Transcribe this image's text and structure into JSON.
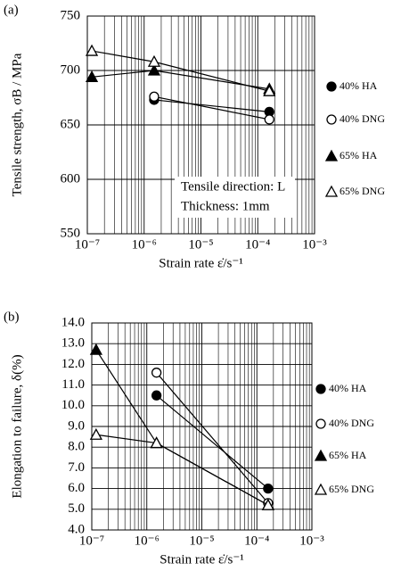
{
  "chart_data": [
    {
      "type": "line",
      "panel_label": "(a)",
      "y_label": "Tensile strength, σB / MPa",
      "x_label": "Strain rate  ε̇/s⁻¹",
      "log_x": true,
      "grid": true,
      "xlim": [
        1e-07,
        0.001
      ],
      "xticks": [
        {
          "value": 1e-07,
          "label": "10⁻⁷"
        },
        {
          "value": 1e-06,
          "label": "10⁻⁶"
        },
        {
          "value": 1e-05,
          "label": "10⁻⁵"
        },
        {
          "value": 0.0001,
          "label": "10⁻⁴"
        },
        {
          "value": 0.001,
          "label": "10⁻³"
        }
      ],
      "ylim": [
        550,
        750
      ],
      "yticks": [
        550,
        600,
        650,
        700,
        750
      ],
      "annotations": [
        "Tensile direction: L",
        "Thickness: 1mm"
      ],
      "series": [
        {
          "name": "40% HA",
          "color": "#000000",
          "marker": "circle",
          "filled": true,
          "x": [
            1.5e-06,
            0.00016
          ],
          "values": [
            673,
            662
          ]
        },
        {
          "name": "40% DNG",
          "color": "#000000",
          "marker": "circle",
          "filled": false,
          "x": [
            1.5e-06,
            0.00016
          ],
          "values": [
            676,
            655
          ]
        },
        {
          "name": "65% HA",
          "color": "#000000",
          "marker": "triangle",
          "filled": true,
          "x": [
            1.2e-07,
            1.5e-06,
            0.00016
          ],
          "values": [
            694,
            700,
            683
          ]
        },
        {
          "name": "65% DNG",
          "color": "#000000",
          "marker": "triangle",
          "filled": false,
          "x": [
            1.2e-07,
            1.5e-06,
            0.00016
          ],
          "values": [
            718,
            708,
            681
          ]
        }
      ]
    },
    {
      "type": "line",
      "panel_label": "(b)",
      "y_label": "Elongation to failure, δ(%)",
      "x_label": "Strain rate  ε̇/s⁻¹",
      "log_x": true,
      "grid": true,
      "xlim": [
        1e-07,
        0.001
      ],
      "xticks": [
        {
          "value": 1e-07,
          "label": "10⁻⁷"
        },
        {
          "value": 1e-06,
          "label": "10⁻⁶"
        },
        {
          "value": 1e-05,
          "label": "10⁻⁵"
        },
        {
          "value": 0.0001,
          "label": "10⁻⁴"
        },
        {
          "value": 0.001,
          "label": "10⁻³"
        }
      ],
      "ylim": [
        4,
        14
      ],
      "yticks": [
        {
          "value": 4,
          "label": "4.0"
        },
        {
          "value": 5,
          "label": "5.0"
        },
        {
          "value": 6,
          "label": "6.0"
        },
        {
          "value": 7,
          "label": "7.0"
        },
        {
          "value": 8,
          "label": "8.0"
        },
        {
          "value": 9,
          "label": "9.0"
        },
        {
          "value": 10,
          "label": "10.0"
        },
        {
          "value": 11,
          "label": "11.0"
        },
        {
          "value": 12,
          "label": "12.0"
        },
        {
          "value": 13,
          "label": "13.0"
        },
        {
          "value": 14,
          "label": "14.0"
        }
      ],
      "series": [
        {
          "name": "40% HA",
          "color": "#000000",
          "marker": "circle",
          "filled": true,
          "x": [
            1.5e-06,
            0.00016
          ],
          "values": [
            10.5,
            6.0
          ]
        },
        {
          "name": "40% DNG",
          "color": "#000000",
          "marker": "circle",
          "filled": false,
          "x": [
            1.5e-06,
            0.00016
          ],
          "values": [
            11.6,
            5.3
          ]
        },
        {
          "name": "65% HA",
          "color": "#000000",
          "marker": "triangle",
          "filled": true,
          "x": [
            1.2e-07,
            1.5e-06,
            0.00016
          ],
          "values": [
            12.7,
            8.2,
            5.2
          ]
        },
        {
          "name": "65% DNG",
          "color": "#000000",
          "marker": "triangle",
          "filled": false,
          "x": [
            1.2e-07,
            1.5e-06,
            0.00016
          ],
          "values": [
            8.6,
            8.2,
            5.2
          ]
        }
      ]
    }
  ]
}
